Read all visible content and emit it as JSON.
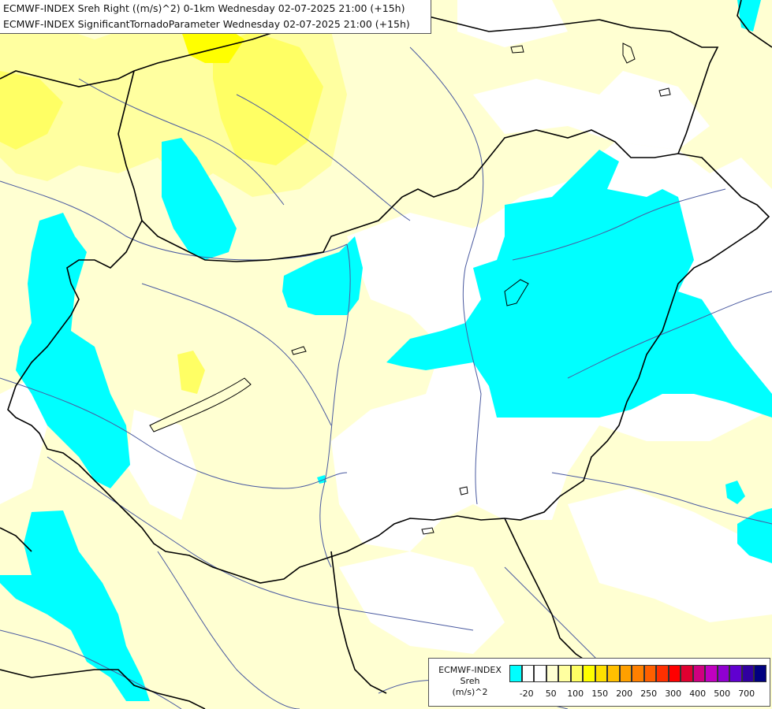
{
  "header": {
    "line1": "ECMWF-INDEX Sreh Right ((m/s)^2) 0-1km Wednesday 02-07-2025 21:00 (+15h)",
    "line2": "ECMWF-INDEX SignificantTornadoParameter Wednesday 02-07-2025 21:00 (+15h)"
  },
  "legend": {
    "title_lines": [
      "ECMWF-INDEX",
      "Sreh",
      "(m/s)^2"
    ],
    "swatch_colors": [
      "#00ffff",
      "#ffffff",
      "#ffffff",
      "#ffffd2",
      "#ffffa0",
      "#ffff64",
      "#ffff00",
      "#ffe000",
      "#ffc000",
      "#ffa000",
      "#ff8000",
      "#ff6000",
      "#ff3000",
      "#ff0000",
      "#e00030",
      "#d00080",
      "#c000c0",
      "#9000d0",
      "#6000d0",
      "#3000a0",
      "#000080"
    ],
    "tick_labels": [
      "-20",
      "50",
      "100",
      "150",
      "200",
      "250",
      "300",
      "400",
      "500",
      "700"
    ]
  },
  "map_colors": {
    "cyan": "#00ffff",
    "light_yellow": "#ffffd2",
    "yellow": "#ffffa0",
    "strong_yellow": "#ffff64",
    "bright_yellow": "#ffff00",
    "river": "#4a5aa0",
    "border": "#000000"
  }
}
